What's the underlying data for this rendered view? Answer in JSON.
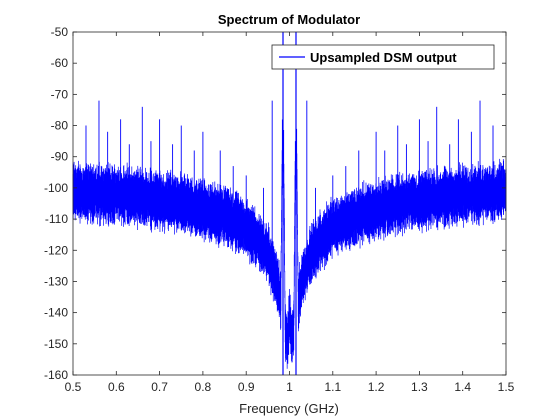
{
  "chart_data": {
    "type": "line",
    "title": "Spectrum of Modulator",
    "xlabel": "Frequency (GHz)",
    "ylabel": "",
    "xlim": [
      0.5,
      1.5
    ],
    "ylim": [
      -160,
      -50
    ],
    "xticks": [
      0.5,
      0.6,
      0.7,
      0.8,
      0.9,
      1,
      1.1,
      1.2,
      1.3,
      1.4,
      1.5
    ],
    "xtick_labels": [
      "0.5",
      "0.6",
      "0.7",
      "0.8",
      "0.9",
      "1",
      "1.1",
      "1.2",
      "1.3",
      "1.4",
      "1.5"
    ],
    "yticks": [
      -50,
      -60,
      -70,
      -80,
      -90,
      -100,
      -110,
      -120,
      -130,
      -140,
      -150,
      -160
    ],
    "ytick_labels": [
      "-50",
      "-60",
      "-70",
      "-80",
      "-90",
      "-100",
      "-110",
      "-120",
      "-130",
      "-140",
      "-150",
      "-160"
    ],
    "grid": false,
    "legend_position": "top-right",
    "series": [
      {
        "name": "Upsampled DSM output",
        "color": "#0000ff",
        "description_points": {
          "x": [
            0.5,
            0.55,
            0.6,
            0.65,
            0.7,
            0.75,
            0.8,
            0.85,
            0.9,
            0.93,
            0.95,
            0.97,
            0.98,
            0.985,
            0.99,
            0.995,
            1.0,
            1.005,
            1.01,
            1.015,
            1.02,
            1.03,
            1.05,
            1.07,
            1.1,
            1.15,
            1.2,
            1.25,
            1.3,
            1.35,
            1.4,
            1.45,
            1.5
          ],
          "y": [
            -101,
            -102,
            -102,
            -103,
            -104,
            -105,
            -107,
            -109,
            -113,
            -117,
            -121,
            -129,
            -136,
            -62,
            -145,
            -149,
            -142,
            -149,
            -145,
            -62,
            -136,
            -129,
            -121,
            -117,
            -113,
            -109,
            -107,
            -105,
            -104,
            -103,
            -102,
            -102,
            -101
          ]
        },
        "spurs": [
          {
            "x": 0.53,
            "y": -80
          },
          {
            "x": 0.56,
            "y": -72
          },
          {
            "x": 0.58,
            "y": -82
          },
          {
            "x": 0.61,
            "y": -78
          },
          {
            "x": 0.63,
            "y": -86
          },
          {
            "x": 0.66,
            "y": -74
          },
          {
            "x": 0.68,
            "y": -85
          },
          {
            "x": 0.7,
            "y": -78
          },
          {
            "x": 0.73,
            "y": -86
          },
          {
            "x": 0.75,
            "y": -80
          },
          {
            "x": 0.78,
            "y": -88
          },
          {
            "x": 0.8,
            "y": -82
          },
          {
            "x": 0.84,
            "y": -88
          },
          {
            "x": 0.87,
            "y": -93
          },
          {
            "x": 0.9,
            "y": -96
          },
          {
            "x": 0.94,
            "y": -100
          },
          {
            "x": 0.96,
            "y": -72
          },
          {
            "x": 1.04,
            "y": -72
          },
          {
            "x": 1.06,
            "y": -100
          },
          {
            "x": 1.1,
            "y": -96
          },
          {
            "x": 1.13,
            "y": -93
          },
          {
            "x": 1.16,
            "y": -88
          },
          {
            "x": 1.2,
            "y": -82
          },
          {
            "x": 1.22,
            "y": -88
          },
          {
            "x": 1.25,
            "y": -80
          },
          {
            "x": 1.27,
            "y": -86
          },
          {
            "x": 1.3,
            "y": -78
          },
          {
            "x": 1.32,
            "y": -85
          },
          {
            "x": 1.34,
            "y": -74
          },
          {
            "x": 1.37,
            "y": -86
          },
          {
            "x": 1.39,
            "y": -78
          },
          {
            "x": 1.42,
            "y": -82
          },
          {
            "x": 1.44,
            "y": -72
          },
          {
            "x": 1.47,
            "y": -80
          }
        ]
      }
    ]
  }
}
